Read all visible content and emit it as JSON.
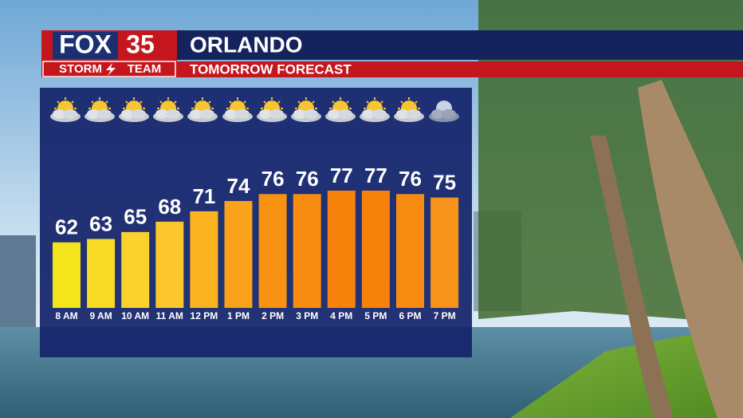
{
  "branding": {
    "network": "FOX",
    "channel": "35",
    "team_left": "STORM",
    "team_right": "TEAM"
  },
  "chart_data": {
    "type": "bar",
    "title": "ORLANDO",
    "subtitle": "TOMORROW FORECAST",
    "categories": [
      "8 AM",
      "9 AM",
      "10 AM",
      "11 AM",
      "12 PM",
      "1 PM",
      "2 PM",
      "3 PM",
      "4 PM",
      "5 PM",
      "6 PM",
      "7 PM"
    ],
    "values": [
      62,
      63,
      65,
      68,
      71,
      74,
      76,
      76,
      77,
      77,
      76,
      75
    ],
    "colors": [
      "#f4e41c",
      "#f7da24",
      "#fad22e",
      "#fcc62e",
      "#fbb420",
      "#f9a21a",
      "#f79212",
      "#f78c10",
      "#f7820b",
      "#f7820b",
      "#f78c10",
      "#f7931a"
    ],
    "ylim": [
      43,
      80
    ]
  }
}
